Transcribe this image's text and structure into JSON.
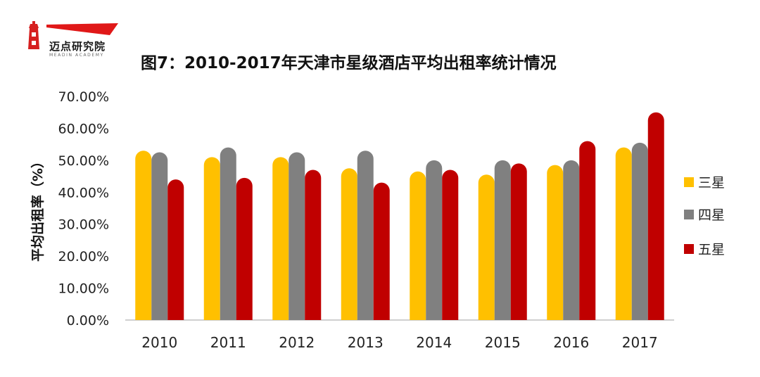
{
  "logo": {
    "text": "迈点研究院",
    "subtext": "MEADIN ACADEMY"
  },
  "chart_data": {
    "type": "bar",
    "title": "图7：2010-2017年天津市星级酒店平均出租率统计情况",
    "ylabel": "平均出租率（%）",
    "xlabel": "",
    "categories": [
      "2010",
      "2011",
      "2012",
      "2013",
      "2014",
      "2015",
      "2016",
      "2017"
    ],
    "series": [
      {
        "name": "三星",
        "color": "#FFC000",
        "values": [
          53.0,
          51.0,
          51.0,
          47.5,
          46.5,
          45.5,
          48.5,
          54.0
        ]
      },
      {
        "name": "四星",
        "color": "#808080",
        "values": [
          52.5,
          54.0,
          52.5,
          53.0,
          50.0,
          50.0,
          50.0,
          55.5
        ]
      },
      {
        "name": "五星",
        "color": "#C00000",
        "values": [
          44.0,
          44.5,
          47.0,
          43.0,
          47.0,
          49.0,
          56.0,
          65.0
        ]
      }
    ],
    "ylim": [
      0,
      70
    ],
    "yticks": [
      "0.00%",
      "10.00%",
      "20.00%",
      "30.00%",
      "40.00%",
      "50.00%",
      "60.00%",
      "70.00%"
    ],
    "legend_position": "right",
    "grid": false
  }
}
